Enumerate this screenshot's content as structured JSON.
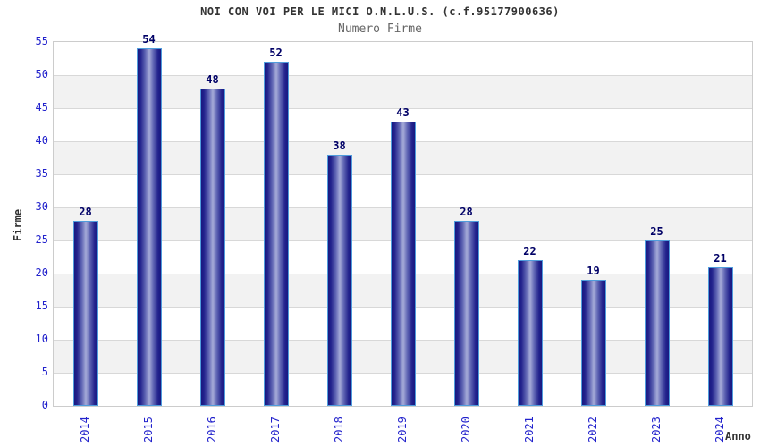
{
  "chart_data": {
    "type": "bar",
    "title": "NOI CON VOI PER LE MICI O.N.L.U.S. (c.f.95177900636)",
    "subtitle": "Numero Firme",
    "xlabel": "Anno",
    "ylabel": "Firme",
    "categories": [
      "2014",
      "2015",
      "2016",
      "2017",
      "2018",
      "2019",
      "2020",
      "2021",
      "2022",
      "2023",
      "2024"
    ],
    "values": [
      28,
      54,
      48,
      52,
      38,
      43,
      28,
      22,
      19,
      25,
      21
    ],
    "ylim": [
      0,
      55
    ],
    "ytick_step": 5,
    "grid": true,
    "legend": "none",
    "layout": {
      "bands": "alternating white and light-gray horizontal stripes every 5 units",
      "x_tick_rotation": "vertical (bottom-to-top)"
    },
    "colors": {
      "bar_edge": "#181880",
      "bar_center": "#a6abd8",
      "bar_outline": "#4f9cdc",
      "tick_label": "#2222cc",
      "value_label": "#000066",
      "band": "#f2f2f2",
      "gridline": "#d8d8d8",
      "plot_border": "#cccccc",
      "title": "#333333",
      "subtitle": "#666666"
    }
  }
}
